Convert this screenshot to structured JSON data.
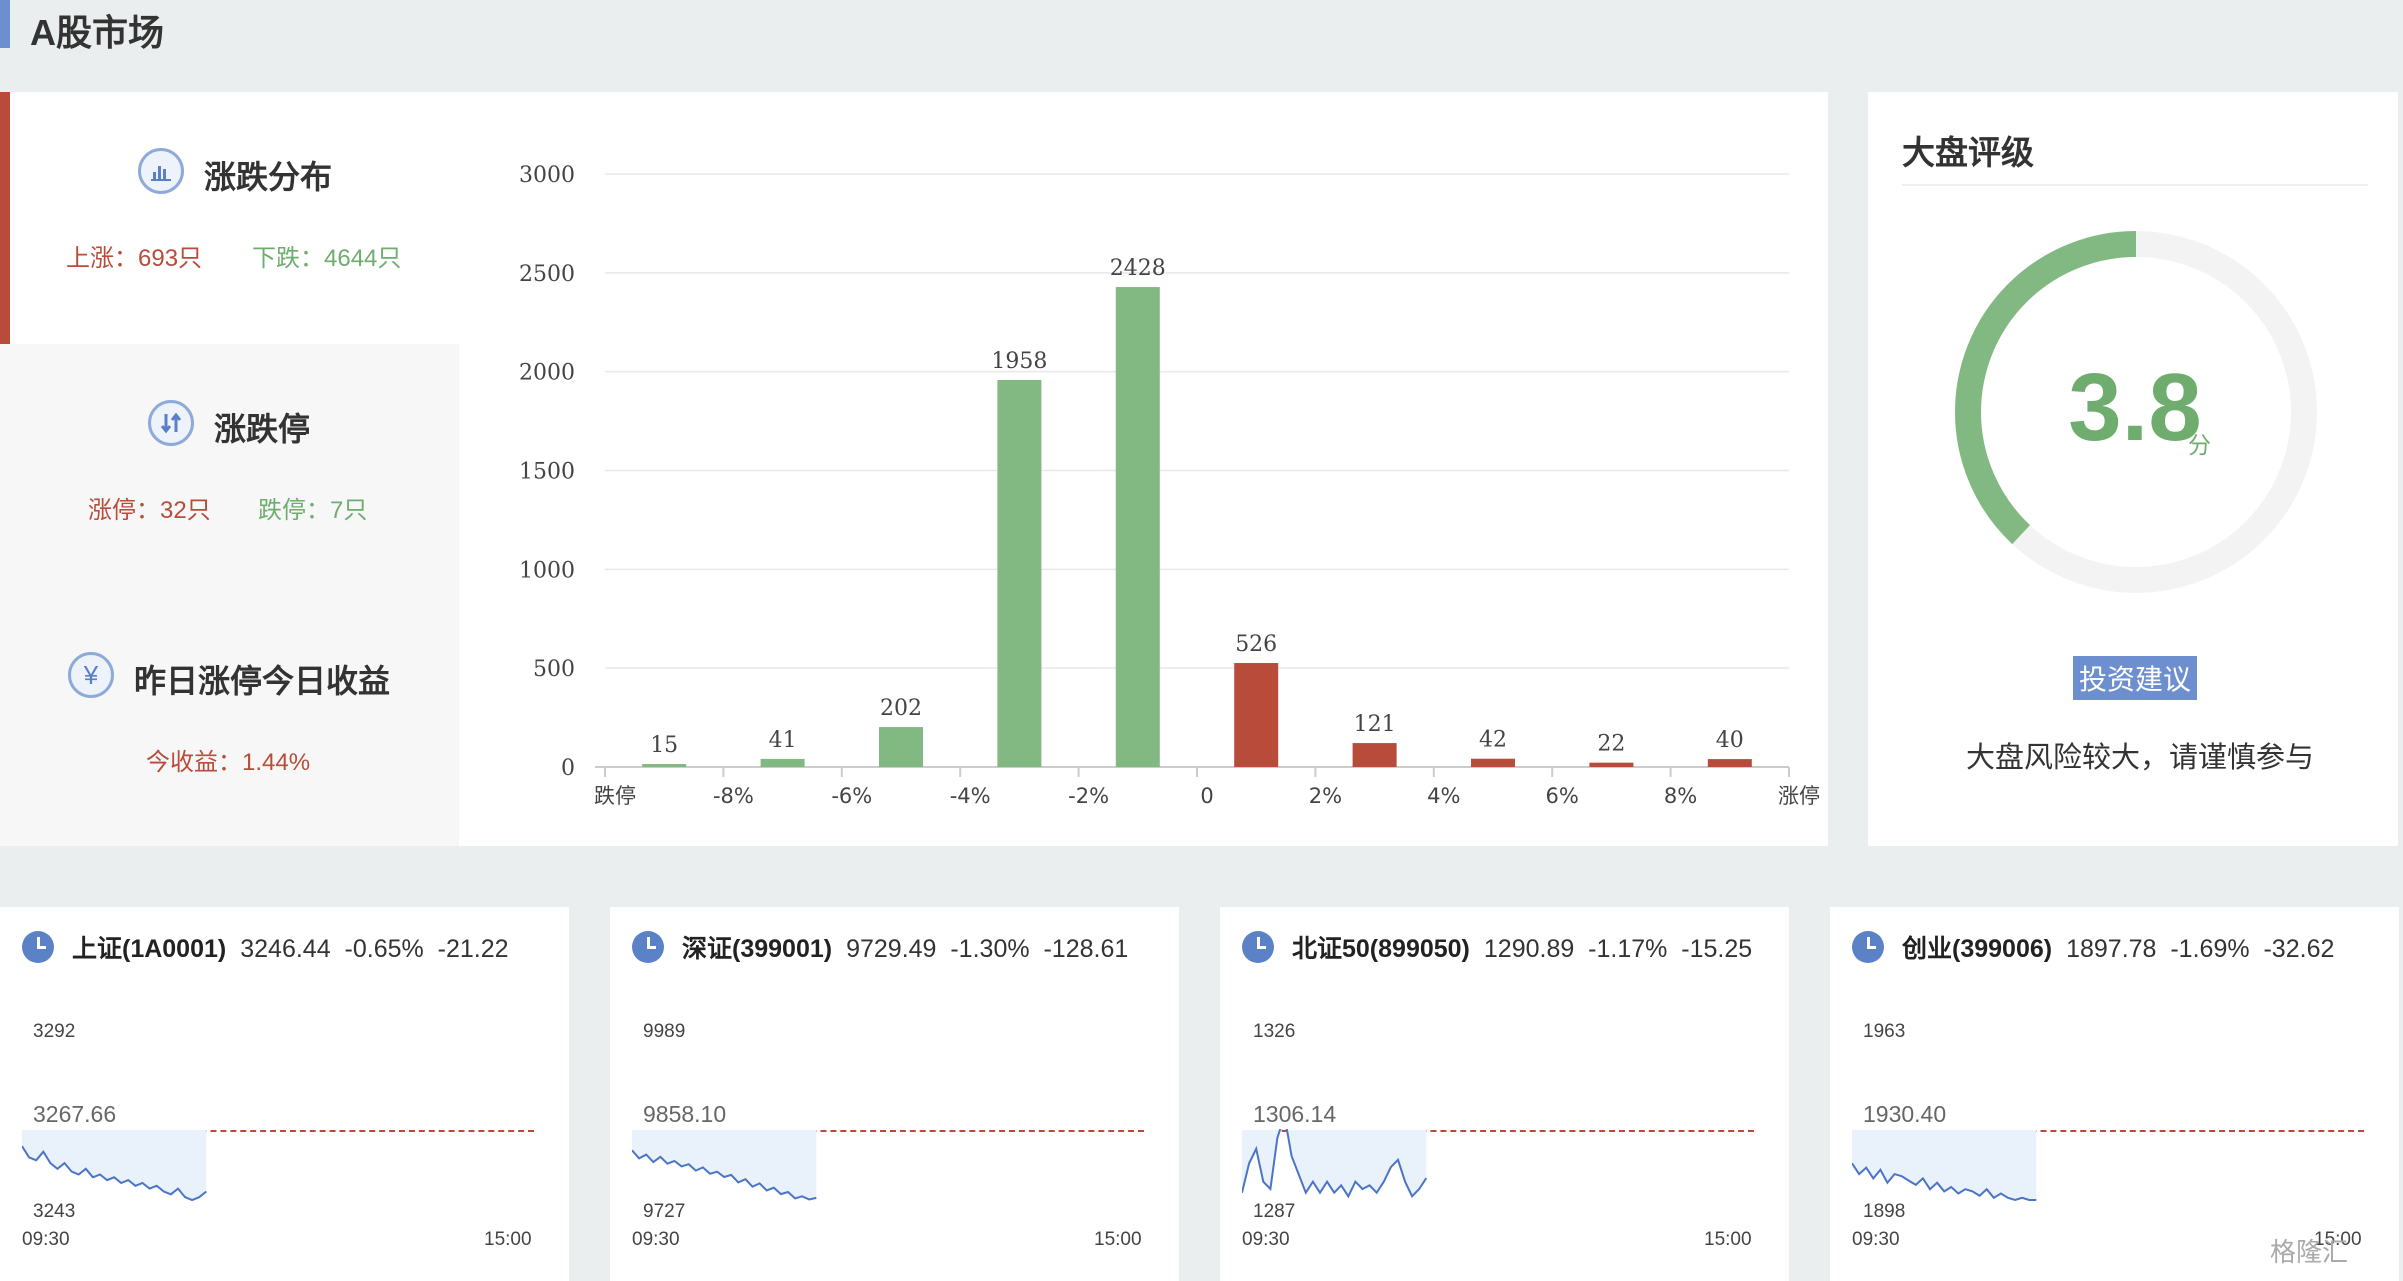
{
  "header": {
    "title": "A股市场"
  },
  "distribution": {
    "title": "涨跌分布",
    "icon": "bar-chart-icon",
    "up_label": "上涨：693只",
    "down_label": "下跌：4644只"
  },
  "limits": {
    "title": "涨跌停",
    "icon": "up-down-arrows-icon",
    "limit_up_label": "涨停：32只",
    "limit_down_label": "跌停：7只"
  },
  "yesterday": {
    "title": "昨日涨停今日收益",
    "icon": "yen-icon",
    "icon_glyph": "¥",
    "return_label": "今收益：1.44%"
  },
  "chart_data": {
    "type": "bar",
    "categories": [
      "跌停",
      "-8%",
      "-6%",
      "-4%",
      "-2%",
      "0",
      "2%",
      "4%",
      "6%",
      "8%",
      "涨停"
    ],
    "bars": [
      {
        "value": 15,
        "color": "#82b982"
      },
      {
        "value": 41,
        "color": "#82b982"
      },
      {
        "value": 202,
        "color": "#82b982"
      },
      {
        "value": 1958,
        "color": "#82b982"
      },
      {
        "value": 2428,
        "color": "#82b982"
      },
      {
        "value": 526,
        "color": "#b94b3a"
      },
      {
        "value": 121,
        "color": "#b94b3a"
      },
      {
        "value": 42,
        "color": "#b94b3a"
      },
      {
        "value": 22,
        "color": "#b94b3a"
      },
      {
        "value": 40,
        "color": "#b94b3a"
      }
    ],
    "yticks": [
      0,
      500,
      1000,
      1500,
      2000,
      2500,
      3000
    ],
    "ylim": [
      0,
      3000
    ],
    "grid": true
  },
  "rating": {
    "title": "大盘评级",
    "score": "3.8",
    "unit": "分",
    "max_score": 10,
    "score_value": 3.8,
    "advice_label": "投资建议",
    "advice_text": "大盘风险较大，请谨慎参与",
    "ring_color": "#82b982",
    "ring_bg_color": "#f3f3f3"
  },
  "indices": [
    {
      "name": "上证(1A0001)",
      "price": "3246.44",
      "pct": "-0.65%",
      "chg": "-21.22",
      "high": "3292",
      "prev": "3267.66",
      "low": "3243",
      "start": "09:30",
      "end": "15:00",
      "series": [
        3262,
        3258,
        3257,
        3260,
        3256,
        3254,
        3256,
        3253,
        3252,
        3254,
        3251,
        3252,
        3250,
        3251,
        3249,
        3250,
        3248,
        3249,
        3247,
        3248,
        3246,
        3245,
        3247,
        3244,
        3243,
        3244,
        3246
      ]
    },
    {
      "name": "深证(399001)",
      "price": "9729.49",
      "pct": "-1.30%",
      "chg": "-128.61",
      "high": "9989",
      "prev": "9858.10",
      "low": "9727",
      "start": "09:30",
      "end": "15:00",
      "series": [
        9820,
        9805,
        9812,
        9798,
        9808,
        9795,
        9800,
        9790,
        9794,
        9782,
        9788,
        9776,
        9780,
        9770,
        9774,
        9760,
        9766,
        9752,
        9758,
        9745,
        9750,
        9738,
        9742,
        9730,
        9734,
        9728,
        9731
      ]
    },
    {
      "name": "北证50(899050)",
      "price": "1290.89",
      "pct": "-1.17%",
      "chg": "-15.25",
      "high": "1326",
      "prev": "1306.14",
      "low": "1287",
      "start": "09:30",
      "end": "15:00",
      "series": [
        1289,
        1297,
        1301,
        1292,
        1290,
        1304,
        1310,
        1299,
        1294,
        1289,
        1292,
        1289,
        1292,
        1289,
        1291,
        1288,
        1292,
        1290,
        1291,
        1289,
        1292,
        1296,
        1298,
        1292,
        1288,
        1290,
        1293
      ]
    },
    {
      "name": "创业(399006)",
      "price": "1897.78",
      "pct": "-1.69%",
      "chg": "-32.62",
      "high": "1963",
      "prev": "1930.40",
      "low": "1898",
      "start": "09:30",
      "end": "15:00",
      "series": [
        1915,
        1910,
        1913,
        1908,
        1912,
        1906,
        1910,
        1909,
        1907,
        1905,
        1908,
        1903,
        1906,
        1902,
        1904,
        1901,
        1903,
        1902,
        1900,
        1903,
        1899,
        1901,
        1899,
        1898,
        1899,
        1898,
        1898
      ]
    }
  ],
  "watermark": "格隆汇"
}
